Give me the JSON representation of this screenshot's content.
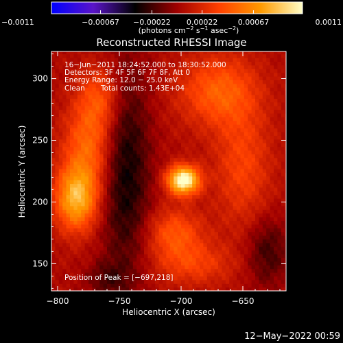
{
  "chart_data": {
    "type": "heatmap",
    "title": "Reconstructed RHESSI Image",
    "xlabel": "Heliocentric X (arcsec)",
    "ylabel": "Heliocentric Y (arcsec)",
    "xlim": [
      -805,
      -615
    ],
    "ylim": [
      128,
      322
    ],
    "x_ticks": [
      -800,
      -750,
      -700,
      -650
    ],
    "x_tick_labels": [
      "−800",
      "−750",
      "−700",
      "−650"
    ],
    "y_ticks": [
      150,
      200,
      250,
      300
    ],
    "y_tick_labels": [
      "150",
      "200",
      "250",
      "300"
    ],
    "colorbar": {
      "range": [
        -0.0011,
        0.0011
      ],
      "ticks": [
        -0.0011,
        -0.00067,
        -0.00022,
        0.00022,
        0.00067,
        0.0011
      ],
      "tick_labels": [
        "−0.0011",
        "−0.00067",
        "−0.00022",
        "0.00022",
        "0.00067",
        "0.0011"
      ],
      "units_label": "(photons cm",
      "units_exp1": "−2",
      "units_mid": " s",
      "units_exp2": "−1",
      "units_mid2": " asec",
      "units_exp3": "−2",
      "units_end": ")",
      "colors": [
        "#0000ff",
        "#5a14c8",
        "#000000",
        "#a00000",
        "#ff4000",
        "#ff9a00",
        "#ffffc8"
      ]
    },
    "annotations": {
      "time_range": "16−Jun−2011 18:24:52.000 to 18:30:52.000",
      "detectors": "Detectors: 3F 4F 5F 6F 7F 8F, Att 0",
      "energy": "Energy Range: 12.0 − 25.0 keV",
      "clean_label": "Clean",
      "total_counts": "Total counts: 1.43E+04",
      "peak": "Position of Peak = [−697,218]"
    },
    "peak_position": [
      -697,
      218
    ],
    "sources": [
      {
        "x": -698,
        "y": 218,
        "sx": 9,
        "sy": 8,
        "amp": 0.00115
      },
      {
        "x": -785,
        "y": 203,
        "sx": 12,
        "sy": 18,
        "amp": 0.00075
      },
      {
        "x": -775,
        "y": 245,
        "sx": 14,
        "sy": 25,
        "amp": 0.00045
      },
      {
        "x": -765,
        "y": 285,
        "sx": 12,
        "sy": 18,
        "amp": 0.00035
      },
      {
        "x": -670,
        "y": 290,
        "sx": 22,
        "sy": 20,
        "amp": 0.00042
      },
      {
        "x": -650,
        "y": 230,
        "sx": 16,
        "sy": 35,
        "amp": 0.0003
      },
      {
        "x": -705,
        "y": 175,
        "sx": 16,
        "sy": 14,
        "amp": 0.00038
      },
      {
        "x": -690,
        "y": 150,
        "sx": 22,
        "sy": 12,
        "amp": 0.00028
      },
      {
        "x": -745,
        "y": 225,
        "sx": 14,
        "sy": 60,
        "amp": -0.0004
      },
      {
        "x": -630,
        "y": 160,
        "sx": 12,
        "sy": 20,
        "amp": -0.00028
      },
      {
        "x": -760,
        "y": 138,
        "sx": 12,
        "sy": 10,
        "amp": -0.0002
      }
    ],
    "grid": false
  },
  "footer": {
    "date_stamp": "12−May−2022 00:59"
  }
}
